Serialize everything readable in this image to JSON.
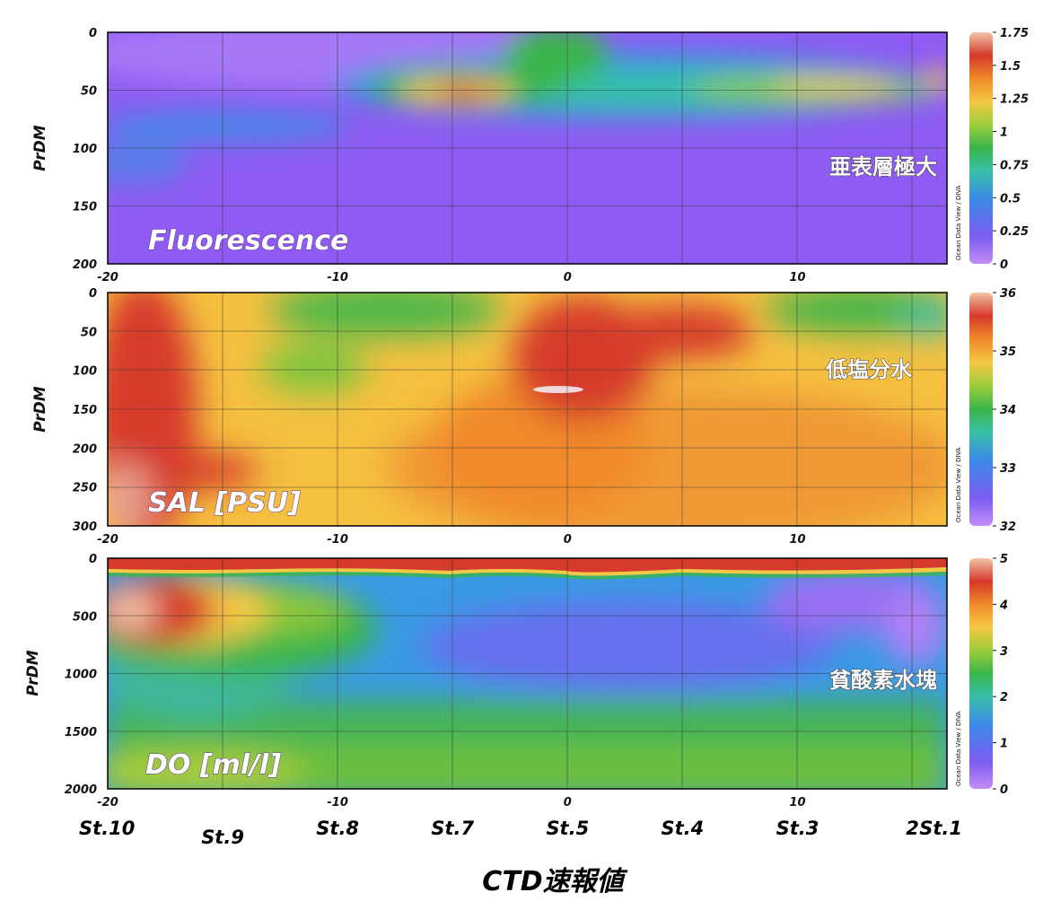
{
  "title": "CTD速報値",
  "credit": "Ocean Data View / DIVA",
  "colors": {
    "scale": [
      "#b57cf5",
      "#7a5cf0",
      "#3b8ae8",
      "#38c0a8",
      "#3ab54a",
      "#8cc83a",
      "#f5c844",
      "#f08a2a",
      "#d63a2a",
      "#f2c3a8"
    ]
  },
  "stations": [
    {
      "label": "St.10",
      "x": -20
    },
    {
      "label": "St.9",
      "x": -15
    },
    {
      "label": "St.8",
      "x": -10
    },
    {
      "label": "St.7",
      "x": -5
    },
    {
      "label": "St.5",
      "x": 0
    },
    {
      "label": "St.4",
      "x": 5
    },
    {
      "label": "St.3",
      "x": 10
    },
    {
      "label": "2",
      "x": 15
    },
    {
      "label": "St.1",
      "x": 16.5
    }
  ],
  "chart_data": [
    {
      "type": "heatmap",
      "title": "Fluorescence",
      "annotation": "亜表層極大",
      "ylabel": "PrDM",
      "xlim": [
        -20,
        16.5
      ],
      "ylim": [
        200,
        0
      ],
      "xticks": [
        -20,
        -10,
        0,
        10
      ],
      "yticks": [
        0,
        50,
        100,
        150,
        200
      ],
      "colorbar": {
        "min": 0,
        "max": 1.75,
        "ticks": [
          "0",
          "0.25",
          "0.5",
          "0.75",
          "1",
          "1.25",
          "1.5",
          "1.75"
        ]
      }
    },
    {
      "type": "heatmap",
      "title": "SAL [PSU]",
      "annotation": "低塩分水",
      "ylabel": "PrDM",
      "xlim": [
        -20,
        16.5
      ],
      "ylim": [
        300,
        0
      ],
      "xticks": [
        -20,
        -10,
        0,
        10
      ],
      "yticks": [
        0,
        50,
        100,
        150,
        200,
        250,
        300
      ],
      "colorbar": {
        "min": 32,
        "max": 36,
        "ticks": [
          "32",
          "33",
          "34",
          "35",
          "36"
        ]
      }
    },
    {
      "type": "heatmap",
      "title": "DO [ml/l]",
      "annotation": "貧酸素水塊",
      "ylabel": "PrDM",
      "xlim": [
        -20,
        16.5
      ],
      "ylim": [
        2000,
        0
      ],
      "xticks": [
        -20,
        -10,
        0,
        10
      ],
      "yticks": [
        0,
        500,
        1000,
        1500,
        2000
      ],
      "colorbar": {
        "min": 0,
        "max": 5,
        "ticks": [
          "0",
          "1",
          "2",
          "3",
          "4",
          "5"
        ]
      }
    }
  ]
}
